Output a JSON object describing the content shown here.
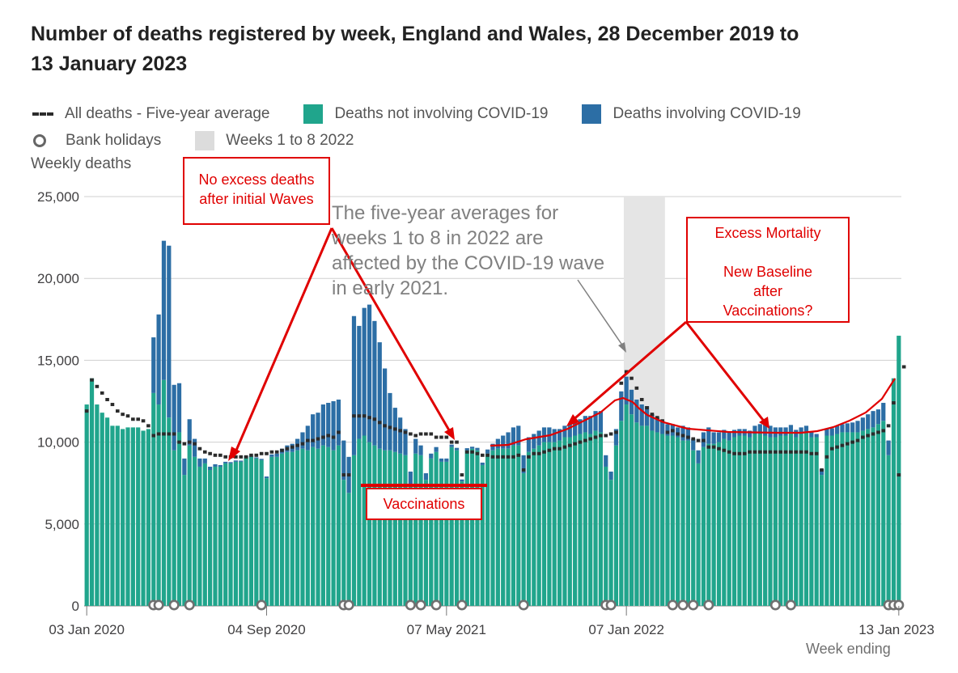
{
  "title": "Number of deaths registered by week, England and Wales, 28 December 2019 to 13 January 2023",
  "legend": {
    "avg": "All deaths - Five-year average",
    "not_covid": "Deaths not involving COVID-19",
    "covid": "Deaths involving COVID-19",
    "bank": "Bank holidays",
    "shade": "Weeks 1 to 8 2022"
  },
  "colors": {
    "not_covid": "#20a58c",
    "covid": "#2c6ea5",
    "avg": "#2b2b2b",
    "shade": "#e5e5e5",
    "annotation": "#e00000"
  },
  "ylabel": "Weekly deaths",
  "xnote": "Week ending",
  "annotations": {
    "no_excess": "No excess deaths after initial Waves",
    "five_year_note": "The five-year averages for weeks 1 to 8 in 2022 are affected by the COVID-19 wave in early 2021.",
    "excess": "Excess Mortality",
    "new_baseline": "New Baseline after Vaccinations?",
    "vaccinations": "Vaccinations"
  },
  "chart_data": {
    "type": "bar",
    "stacked": true,
    "ylim": [
      0,
      25000
    ],
    "yticks": [
      0,
      5000,
      10000,
      15000,
      20000,
      25000
    ],
    "ytick_labels": [
      "0",
      "5,000",
      "10,000",
      "15,000",
      "20,000",
      "25,000"
    ],
    "xtick_labels": [
      {
        "week": 0,
        "label": "03 Jan 2020"
      },
      {
        "week": 35,
        "label": "04 Sep 2020"
      },
      {
        "week": 70,
        "label": "07 May 2021"
      },
      {
        "week": 105,
        "label": "07 Jan 2022"
      },
      {
        "week": 158,
        "label": "13 Jan 2023"
      }
    ],
    "shaded_weeks": [
      105,
      112
    ],
    "bank_holiday_weeks": [
      13,
      14,
      17,
      20,
      34,
      50,
      51,
      63,
      65,
      68,
      73,
      85,
      101,
      102,
      114,
      116,
      118,
      121,
      134,
      137,
      156,
      157,
      158
    ],
    "not_covid": [
      12300,
      13900,
      12300,
      11800,
      11500,
      11000,
      11000,
      10800,
      10900,
      10900,
      10900,
      10700,
      10800,
      13000,
      12300,
      13800,
      11500,
      9500,
      10600,
      8000,
      9800,
      9100,
      8500,
      8700,
      8300,
      8500,
      8500,
      8700,
      8700,
      8800,
      8800,
      9100,
      9100,
      9000,
      8900,
      7800,
      9100,
      9100,
      9300,
      9400,
      9400,
      9500,
      9600,
      9500,
      9700,
      9600,
      9800,
      9700,
      9500,
      9800,
      7700,
      6900,
      9200,
      10200,
      10400,
      10000,
      9800,
      9600,
      9500,
      9500,
      9400,
      9300,
      9200,
      7400,
      9300,
      9200,
      7700,
      9000,
      9400,
      8800,
      8800,
      9700,
      9500,
      7600,
      9500,
      9600,
      9500,
      8600,
      9300,
      9500,
      9600,
      9600,
      9600,
      9800,
      9800,
      8100,
      9400,
      9600,
      9800,
      10000,
      10000,
      10000,
      10100,
      10300,
      10300,
      10400,
      10500,
      10600,
      10500,
      10700,
      10600,
      8500,
      7700,
      9800,
      11300,
      12300,
      11700,
      11200,
      11000,
      11000,
      10700,
      10600,
      10500,
      10400,
      10400,
      10300,
      10100,
      10100,
      9500,
      8700,
      9700,
      9900,
      9900,
      10000,
      10200,
      10100,
      10300,
      10400,
      10400,
      10300,
      10500,
      10500,
      10400,
      10300,
      10300,
      10400,
      10400,
      10600,
      10300,
      10500,
      10600,
      10300,
      10300,
      8000,
      10400,
      10400,
      10500,
      10600,
      10600,
      10600,
      10600,
      10700,
      10800,
      10900,
      11100,
      11300,
      9200,
      13900,
      16500
    ],
    "covid": [
      0,
      0,
      0,
      0,
      0,
      0,
      0,
      0,
      0,
      0,
      0,
      0,
      0,
      3400,
      5500,
      8500,
      10500,
      4000,
      3000,
      1000,
      1600,
      1100,
      500,
      300,
      200,
      150,
      100,
      100,
      80,
      80,
      70,
      60,
      60,
      70,
      80,
      100,
      150,
      200,
      300,
      400,
      500,
      700,
      1000,
      1500,
      2000,
      2200,
      2500,
      2700,
      3000,
      2800,
      2400,
      2200,
      8500,
      6900,
      7800,
      8400,
      7600,
      6500,
      5000,
      3500,
      2700,
      2200,
      1600,
      800,
      900,
      600,
      400,
      300,
      300,
      200,
      200,
      150,
      150,
      120,
      130,
      120,
      150,
      150,
      250,
      400,
      600,
      800,
      1000,
      1100,
      1200,
      1100,
      900,
      900,
      900,
      900,
      900,
      800,
      700,
      700,
      800,
      800,
      900,
      1000,
      1100,
      1200,
      1300,
      700,
      500,
      1000,
      1800,
      1700,
      1500,
      1400,
      1300,
      1200,
      1000,
      900,
      800,
      700,
      700,
      600,
      900,
      800,
      700,
      800,
      900,
      1000,
      700,
      600,
      550,
      500,
      450,
      400,
      400,
      400,
      500,
      600,
      700,
      700,
      600,
      500,
      500,
      450,
      450,
      400,
      400,
      350,
      200,
      350,
      400,
      450,
      500,
      500,
      550,
      600,
      700,
      800,
      900,
      1000,
      900,
      1100,
      900
    ],
    "five_year_average": [
      11900,
      13800,
      13400,
      13000,
      12600,
      12300,
      11900,
      11700,
      11600,
      11400,
      11400,
      11300,
      11000,
      10400,
      10500,
      10500,
      10500,
      10500,
      10000,
      9900,
      10000,
      9900,
      9600,
      9400,
      9300,
      9200,
      9200,
      9100,
      9100,
      9100,
      9100,
      9100,
      9200,
      9200,
      9300,
      9300,
      9400,
      9400,
      9500,
      9600,
      9700,
      9800,
      9900,
      10100,
      10100,
      10200,
      10300,
      10400,
      10300,
      10600,
      8000,
      8000,
      11600,
      11600,
      11600,
      11500,
      11400,
      11200,
      11000,
      10900,
      10800,
      10700,
      10600,
      10500,
      10400,
      10500,
      10500,
      10500,
      10300,
      10300,
      10300,
      10000,
      10000,
      8000,
      9400,
      9400,
      9300,
      9200,
      9200,
      9100,
      9100,
      9100,
      9100,
      9100,
      9200,
      8300,
      9100,
      9300,
      9300,
      9400,
      9500,
      9600,
      9600,
      9700,
      9800,
      9900,
      10000,
      10100,
      10200,
      10300,
      10400,
      10400,
      10500,
      10600,
      13600,
      14300,
      13900,
      13300,
      12600,
      12100,
      11700,
      11500,
      11300,
      10600,
      10700,
      10500,
      10400,
      10300,
      10200,
      10100,
      10100,
      9700,
      9700,
      9600,
      9500,
      9400,
      9300,
      9300,
      9300,
      9400,
      9400,
      9400,
      9400,
      9400,
      9400,
      9400,
      9400,
      9400,
      9400,
      9400,
      9400,
      9300,
      9300,
      8300,
      9100,
      9600,
      9700,
      9800,
      9900,
      10000,
      10100,
      10300,
      10400,
      10500,
      10600,
      10700,
      11000,
      12400,
      8000,
      14600
    ]
  }
}
